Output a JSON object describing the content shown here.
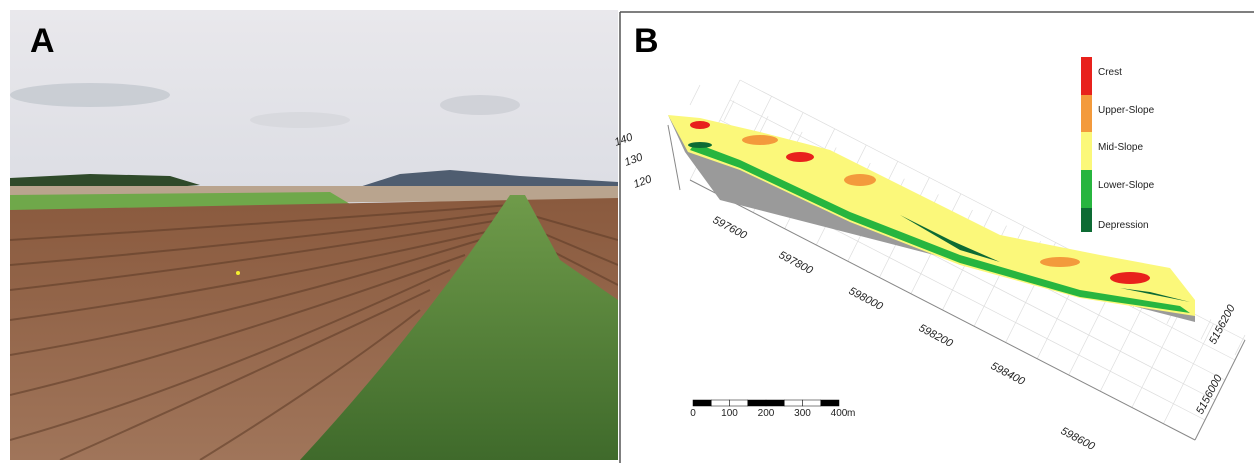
{
  "panel_a": {
    "label": "A"
  },
  "panel_b": {
    "label": "B",
    "legend": [
      {
        "label": "Crest",
        "color": "#e8211c"
      },
      {
        "label": "Upper-Slope",
        "color": "#f39a3c"
      },
      {
        "label": "Mid-Slope",
        "color": "#fbf87a"
      },
      {
        "label": "Lower-Slope",
        "color": "#27b53f"
      },
      {
        "label": "Depression",
        "color": "#0d6b34"
      }
    ],
    "z_ticks": [
      "140",
      "130",
      "120"
    ],
    "x_ticks": [
      "597600",
      "597800",
      "598000",
      "598200",
      "598400",
      "598600"
    ],
    "y_ticks": [
      "5156200",
      "5156000"
    ],
    "scale_bar": {
      "ticks": [
        "0",
        "100",
        "200",
        "300",
        "400"
      ],
      "unit": "m"
    }
  }
}
